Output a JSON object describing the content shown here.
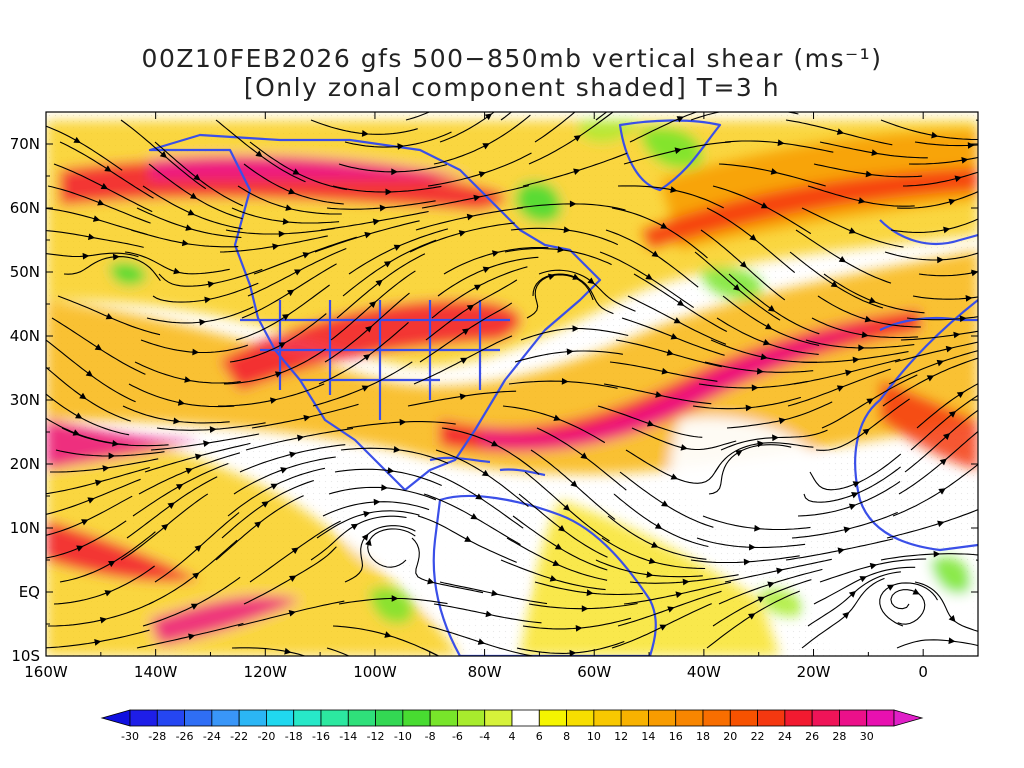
{
  "title": {
    "line1": "00Z10FEB2026 gfs 500−850mb vertical shear (ms⁻¹)",
    "line2": "[Only zonal component shaded] T=3 h"
  },
  "map": {
    "projection": "latlon",
    "lon_range": [
      -160,
      10
    ],
    "lat_range": [
      -10,
      75
    ],
    "lat_ticks": [
      {
        "value": 70,
        "label": "70N"
      },
      {
        "value": 60,
        "label": "60N"
      },
      {
        "value": 50,
        "label": "50N"
      },
      {
        "value": 40,
        "label": "40N"
      },
      {
        "value": 30,
        "label": "30N"
      },
      {
        "value": 20,
        "label": "20N"
      },
      {
        "value": 10,
        "label": "10N"
      },
      {
        "value": 0,
        "label": "EQ"
      },
      {
        "value": -10,
        "label": "10S"
      }
    ],
    "lon_ticks": [
      {
        "value": -160,
        "label": "160W"
      },
      {
        "value": -140,
        "label": "140W"
      },
      {
        "value": -120,
        "label": "120W"
      },
      {
        "value": -100,
        "label": "100W"
      },
      {
        "value": -80,
        "label": "80W"
      },
      {
        "value": -60,
        "label": "60W"
      },
      {
        "value": -40,
        "label": "40W"
      },
      {
        "value": -20,
        "label": "20W"
      },
      {
        "value": 0,
        "label": "0"
      }
    ],
    "coastline_color": "#3a4fe8",
    "streamline_color": "#000000"
  },
  "colorbar": {
    "levels": [
      "-30",
      "-28",
      "-26",
      "-24",
      "-22",
      "-20",
      "-18",
      "-16",
      "-14",
      "-12",
      "-10",
      "-8",
      "-6",
      "-4",
      "4",
      "6",
      "8",
      "10",
      "12",
      "14",
      "16",
      "18",
      "20",
      "22",
      "24",
      "26",
      "28",
      "30"
    ],
    "colors": [
      "#1e1ee8",
      "#2546f2",
      "#2f6ef5",
      "#3996f8",
      "#2bb6f5",
      "#20d8ef",
      "#27e8c8",
      "#2ce8a0",
      "#2fe07a",
      "#33d853",
      "#48dc31",
      "#78e52a",
      "#a8ec2d",
      "#d6f23a",
      "#ffffff",
      "#f5f500",
      "#f7de00",
      "#f8c800",
      "#f8b200",
      "#f89c00",
      "#f88600",
      "#f86e00",
      "#f75200",
      "#f53810",
      "#f21a30",
      "#ef1458",
      "#ec108a",
      "#e810b0"
    ],
    "low_arrow_color": "#1010e0",
    "high_arrow_color": "#e020c8"
  }
}
